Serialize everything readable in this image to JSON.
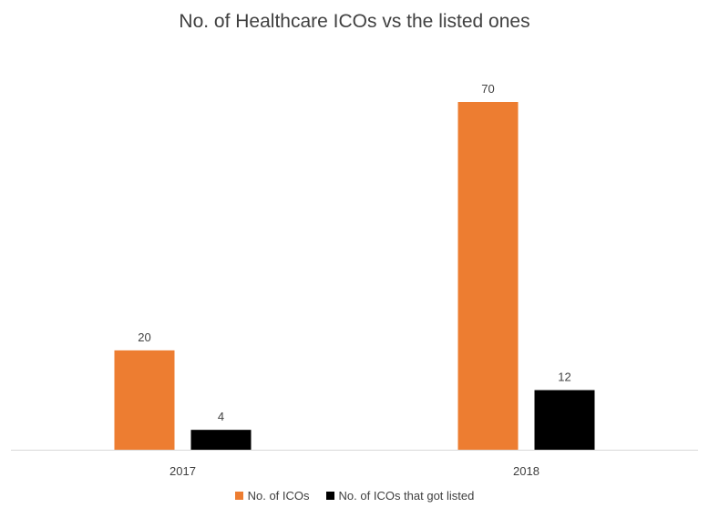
{
  "chart_data": {
    "type": "bar",
    "title": "No. of Healthcare ICOs vs the listed ones",
    "categories": [
      "2017",
      "2018"
    ],
    "series": [
      {
        "name": "No. of ICOs",
        "values": [
          20,
          70
        ],
        "color": "#ED7D31"
      },
      {
        "name": "No. of ICOs that got listed",
        "values": [
          4,
          12
        ],
        "color": "#000000"
      }
    ],
    "ylim": [
      0,
      70
    ],
    "grid": false,
    "legend_position": "bottom",
    "data_labels": true
  }
}
